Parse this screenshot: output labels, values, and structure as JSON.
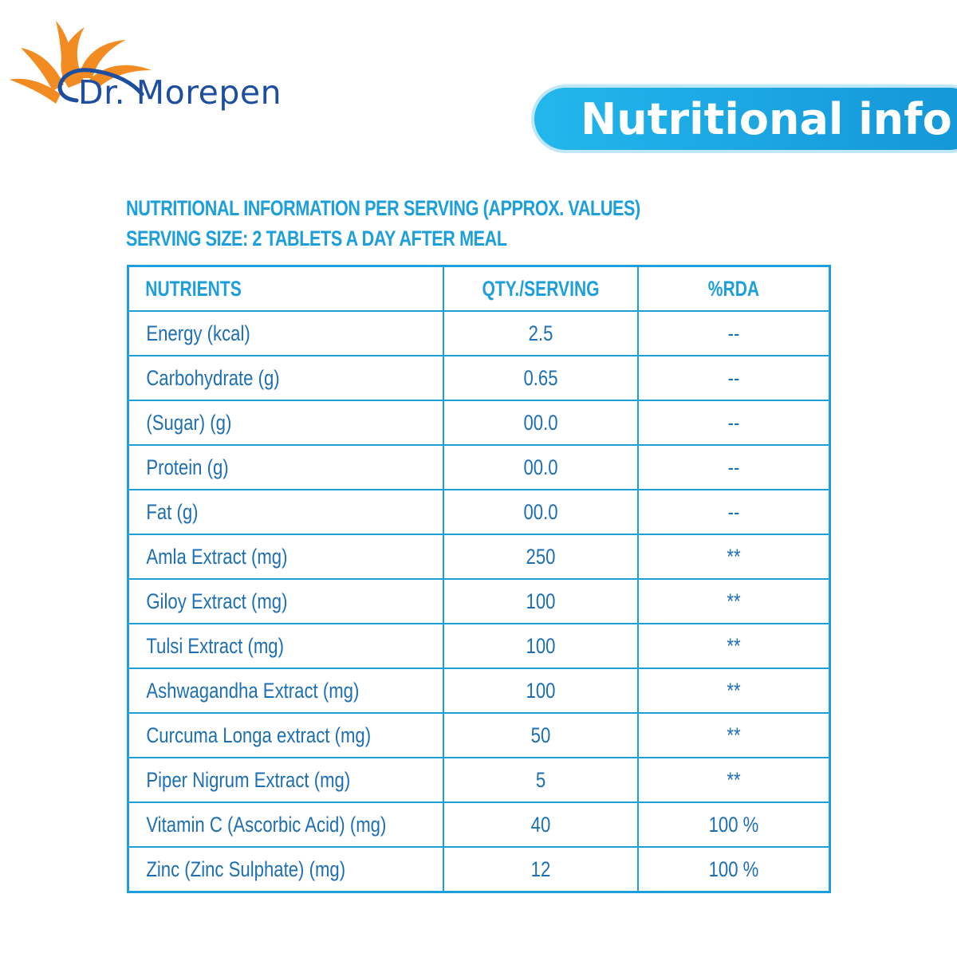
{
  "brand": {
    "name": "Dr. Morepen",
    "sun_color": "#f28c22",
    "text_color": "#1d4ea0"
  },
  "banner": {
    "title": "Nutritional info",
    "color": "#1aa2e0"
  },
  "heading": {
    "line1": "NUTRITIONAL INFORMATION PER SERVING (APPROX. VALUES)",
    "line2": "SERVING SIZE: 2 TABLETS A DAY AFTER MEAL"
  },
  "table": {
    "headers": [
      "NUTRIENTS",
      "QTY./SERVING",
      "%RDA"
    ],
    "rows": [
      [
        "Energy (kcal)",
        "2.5",
        "--"
      ],
      [
        "Carbohydrate (g)",
        "0.65",
        "--"
      ],
      [
        "(Sugar) (g)",
        "00.0",
        "--"
      ],
      [
        "Protein (g)",
        "00.0",
        "--"
      ],
      [
        "Fat (g)",
        "00.0",
        "--"
      ],
      [
        "Amla Extract (mg)",
        "250",
        "**"
      ],
      [
        "Giloy Extract (mg)",
        "100",
        "**"
      ],
      [
        "Tulsi Extract (mg)",
        "100",
        "**"
      ],
      [
        "Ashwagandha Extract (mg)",
        "100",
        "**"
      ],
      [
        "Curcuma Longa extract (mg)",
        "50",
        "**"
      ],
      [
        "Piper Nigrum Extract (mg)",
        "5",
        "**"
      ],
      [
        "Vitamin C (Ascorbic Acid) (mg)",
        "40",
        "100 %"
      ],
      [
        "Zinc (Zinc Sulphate) (mg)",
        "12",
        "100 %"
      ]
    ]
  }
}
